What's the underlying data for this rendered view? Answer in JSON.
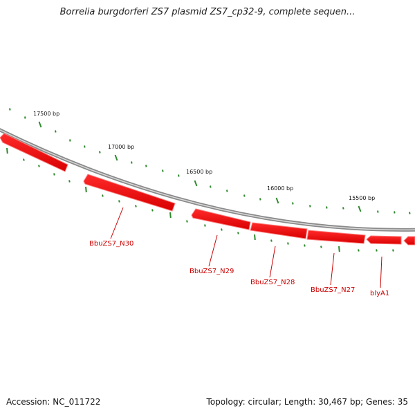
{
  "title": "Borrelia burgdorferi ZS7 plasmid ZS7_cp32-9, complete sequen...",
  "footer": {
    "accession": "Accession: NC_011722",
    "summary": "Topology: circular; Length: 30,467 bp; Genes: 35"
  },
  "map": {
    "colors": {
      "backbone": "#8a8a8a",
      "gene": "#ff0000",
      "gene_label": "#cc0000",
      "tick": "#2e8b2e"
    },
    "ticks": [
      {
        "label": "17500 bp"
      },
      {
        "label": "17000 bp"
      },
      {
        "label": "16500 bp"
      },
      {
        "label": "16000 bp"
      },
      {
        "label": "15500 bp"
      }
    ],
    "genes": [
      {
        "label": "",
        "strand": "-"
      },
      {
        "label": "BbuZS7_N30",
        "strand": "+"
      },
      {
        "label": "BbuZS7_N29",
        "strand": "-"
      },
      {
        "label": "BbuZS7_N28",
        "strand": "+"
      },
      {
        "label": "BbuZS7_N27",
        "strand": "+"
      },
      {
        "label": "blyA1",
        "strand": "-"
      },
      {
        "label": "",
        "strand": "-"
      }
    ]
  }
}
